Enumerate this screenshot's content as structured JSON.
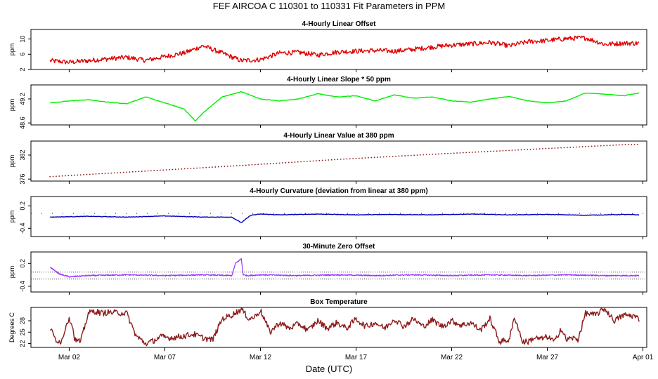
{
  "chart_data": {
    "type": "line",
    "title": "FEF   AIRCOA C   110301 to 110331   Fit Parameters in PPM",
    "xlabel": "Date (UTC)",
    "x_range_days": [
      -1.0,
      31.2
    ],
    "x_ticks": [
      {
        "label": "Mar 02",
        "day": 1
      },
      {
        "label": "Mar 07",
        "day": 6
      },
      {
        "label": "Mar 12",
        "day": 11
      },
      {
        "label": "Mar 17",
        "day": 16
      },
      {
        "label": "Mar 22",
        "day": 21
      },
      {
        "label": "Mar 27",
        "day": 26
      },
      {
        "label": "Apr 01",
        "day": 31
      }
    ],
    "panels": [
      {
        "title": "4-Hourly Linear Offset",
        "ylabel": "ppm",
        "ylim": [
          2,
          12.5
        ],
        "yticks": [
          "2",
          "6",
          "10"
        ],
        "ytick_values": [
          2,
          6,
          10
        ],
        "color": "#dd0000",
        "style": "line",
        "x": [
          0,
          1,
          2,
          3,
          4,
          5,
          6,
          7,
          8,
          9,
          10,
          11,
          12,
          13,
          14,
          15,
          16,
          17,
          18,
          19,
          20,
          21,
          22,
          23,
          24,
          25,
          26,
          27,
          28,
          29,
          30,
          30.8
        ],
        "y": [
          4.3,
          3.9,
          4.3,
          4.8,
          5.2,
          4.4,
          5.4,
          6.3,
          8.2,
          6.3,
          4.3,
          4.6,
          6.3,
          6.5,
          5.8,
          6.6,
          6.8,
          7.0,
          6.8,
          7.3,
          7.9,
          8.4,
          8.7,
          9.1,
          8.2,
          9.3,
          9.6,
          10.1,
          10.3,
          8.6,
          8.9,
          8.9
        ]
      },
      {
        "title": "4-Hourly Linear Slope * 50 ppm",
        "ylabel": "ppm",
        "ylim": [
          48.55,
          49.55
        ],
        "yticks": [
          "48.6",
          "49.2"
        ],
        "ytick_values": [
          48.6,
          49.2
        ],
        "color": "#00ee00",
        "style": "line",
        "x": [
          0,
          1,
          2,
          3,
          4,
          5,
          6,
          7,
          7.6,
          8,
          8.5,
          9,
          10,
          11,
          12,
          13,
          14,
          15,
          16,
          17,
          18,
          19,
          20,
          21,
          22,
          23,
          24,
          25,
          26,
          27,
          28,
          29,
          30,
          30.8
        ],
        "y": [
          49.1,
          49.15,
          49.18,
          49.12,
          49.08,
          49.25,
          49.1,
          48.95,
          48.65,
          48.85,
          49.05,
          49.25,
          49.38,
          49.2,
          49.15,
          49.2,
          49.33,
          49.25,
          49.28,
          49.15,
          49.3,
          49.22,
          49.25,
          49.15,
          49.12,
          49.2,
          49.26,
          49.15,
          49.1,
          49.15,
          49.35,
          49.32,
          49.28,
          49.35
        ]
      },
      {
        "title": "4-Hourly Linear Value at 380 ppm",
        "ylabel": "ppm",
        "ylim": [
          375.5,
          385.5
        ],
        "yticks": [
          "376",
          "382"
        ],
        "ytick_values": [
          376,
          382
        ],
        "color": "#8b1a1a",
        "style": "dots",
        "x": [
          0,
          5,
          10,
          15,
          20,
          25,
          30,
          30.8
        ],
        "y": [
          376.6,
          378.0,
          379.4,
          380.9,
          382.2,
          383.4,
          384.6,
          384.7
        ]
      },
      {
        "title": "4-Hourly Curvature (deviation from linear at 380 ppm)",
        "ylabel": "ppm",
        "ylim": [
          -0.62,
          0.45
        ],
        "yticks": [
          "-0.4",
          "0.2"
        ],
        "ytick_values": [
          -0.4,
          0.2
        ],
        "color": "#0000bb",
        "style": "line",
        "x": [
          0,
          2,
          4,
          6,
          8,
          9.5,
          10,
          10.5,
          11,
          12,
          14,
          16,
          18,
          20,
          22,
          24,
          26,
          28,
          30,
          30.8
        ],
        "y": [
          -0.1,
          -0.08,
          -0.1,
          -0.07,
          -0.1,
          -0.1,
          -0.25,
          -0.05,
          -0.02,
          -0.04,
          -0.02,
          -0.04,
          -0.03,
          -0.04,
          -0.02,
          -0.04,
          -0.03,
          -0.05,
          -0.03,
          -0.04
        ]
      },
      {
        "title": "30-Minute Zero Offset",
        "ylabel": "ppm",
        "ylim": [
          -0.55,
          0.5
        ],
        "yticks": [
          "-0.4",
          "0.2"
        ],
        "ytick_values": [
          -0.4,
          0.2
        ],
        "color": "#9933ff",
        "style": "line",
        "x": [
          0,
          0.5,
          1,
          2,
          4,
          6,
          8,
          9.5,
          9.7,
          10,
          10.1,
          10.3,
          11,
          13,
          15,
          17,
          19,
          21,
          23,
          25,
          27,
          29,
          30.8
        ],
        "y": [
          0.1,
          -0.08,
          -0.15,
          -0.12,
          -0.1,
          -0.12,
          -0.1,
          -0.12,
          0.2,
          0.32,
          -0.1,
          -0.12,
          -0.1,
          -0.12,
          -0.1,
          -0.12,
          -0.1,
          -0.12,
          -0.1,
          -0.12,
          -0.1,
          -0.12,
          -0.12
        ]
      },
      {
        "title": "Box Temperature",
        "ylabel": "Degrees C",
        "ylim": [
          21,
          31.5
        ],
        "yticks": [
          "22",
          "25",
          "28"
        ],
        "ytick_values": [
          22,
          25,
          28
        ],
        "color": "#8b1a1a",
        "style": "line",
        "x": [
          0,
          0.3,
          0.6,
          0.9,
          1.1,
          1.3,
          1.6,
          2.0,
          2.3,
          2.7,
          3.0,
          4,
          4.5,
          5.0,
          5.3,
          5.8,
          6.3,
          7.0,
          7.5,
          8.0,
          8.5,
          9.0,
          9.5,
          10.0,
          10.4,
          10.7,
          11.0,
          11.5,
          12,
          12.5,
          13,
          13.5,
          14,
          14.5,
          15,
          15.5,
          16,
          16.5,
          17,
          17.5,
          18,
          18.5,
          19,
          19.5,
          20,
          20.5,
          21,
          21.5,
          22,
          22.5,
          23,
          23.5,
          24,
          24.3,
          24.7,
          25,
          25.3,
          25.7,
          26,
          26.4,
          26.7,
          27,
          27.3,
          27.6,
          28,
          28.5,
          29,
          29.5,
          30,
          30.5,
          30.8
        ],
        "y": [
          26,
          23,
          22.5,
          28,
          28.2,
          23,
          22.5,
          30,
          30.5,
          30,
          30.2,
          30,
          24,
          22,
          22.5,
          23.8,
          23.5,
          24,
          24.5,
          23.5,
          23,
          28.5,
          29.5,
          31,
          28.5,
          29,
          30.8,
          25,
          27.5,
          26,
          27.2,
          25.5,
          28,
          26,
          27.5,
          26,
          28.5,
          26.5,
          27.5,
          26,
          28.5,
          26.5,
          28.5,
          26.5,
          28.2,
          26.5,
          28,
          26.8,
          27.5,
          25.5,
          28.5,
          22.5,
          23,
          29,
          22.5,
          22.5,
          23.5,
          23.2,
          23.8,
          22.5,
          26,
          23,
          23.5,
          23,
          30,
          29.5,
          31.2,
          28,
          29.5,
          29.3,
          28.5
        ]
      }
    ]
  }
}
